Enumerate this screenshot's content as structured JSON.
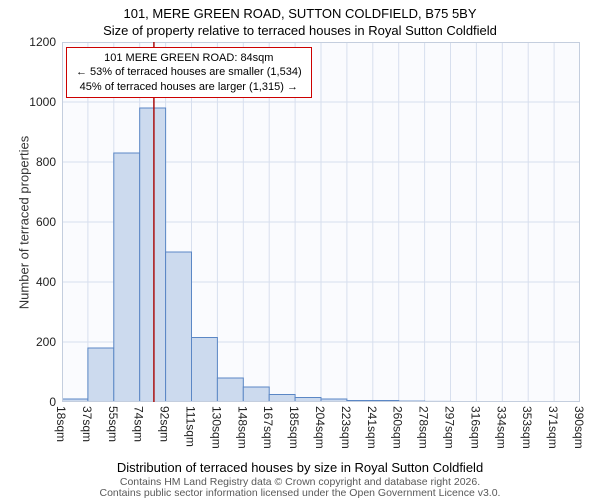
{
  "chart_data": {
    "type": "bar",
    "title": "101, MERE GREEN ROAD, SUTTON COLDFIELD, B75 5BY",
    "subtitle": "Size of property relative to terraced houses in Royal Sutton Coldfield",
    "xlabel": "Distribution of terraced houses by size in Royal Sutton Coldfield",
    "ylabel": "Number of terraced properties",
    "x_tick_labels": [
      "18sqm",
      "37sqm",
      "55sqm",
      "74sqm",
      "92sqm",
      "111sqm",
      "130sqm",
      "148sqm",
      "167sqm",
      "185sqm",
      "204sqm",
      "223sqm",
      "241sqm",
      "260sqm",
      "278sqm",
      "297sqm",
      "316sqm",
      "334sqm",
      "353sqm",
      "371sqm",
      "390sqm"
    ],
    "x_tick_values": [
      18,
      37,
      55,
      74,
      92,
      111,
      130,
      148,
      167,
      185,
      204,
      223,
      241,
      260,
      278,
      297,
      316,
      334,
      353,
      371,
      390
    ],
    "bin_values": [
      10,
      180,
      830,
      980,
      500,
      215,
      80,
      50,
      25,
      15,
      10,
      5,
      5,
      3,
      2,
      0,
      0,
      0,
      0,
      0
    ],
    "ylim": [
      0,
      1200
    ],
    "y_ticks": [
      0,
      200,
      400,
      600,
      800,
      1000,
      1200
    ],
    "grid": true,
    "legend": "none",
    "bar_fill": "#ccdaee",
    "bar_stroke": "#5b87c5",
    "marker": {
      "value": 84,
      "color": "#aa1111",
      "line1": "101 MERE GREEN ROAD: 84sqm",
      "line2": "← 53% of terraced houses are smaller (1,534)",
      "line3": "45% of terraced houses are larger (1,315) →"
    }
  },
  "footer": {
    "line1": "Contains HM Land Registry data © Crown copyright and database right 2026.",
    "line2": "Contains public sector information licensed under the Open Government Licence v3.0."
  }
}
